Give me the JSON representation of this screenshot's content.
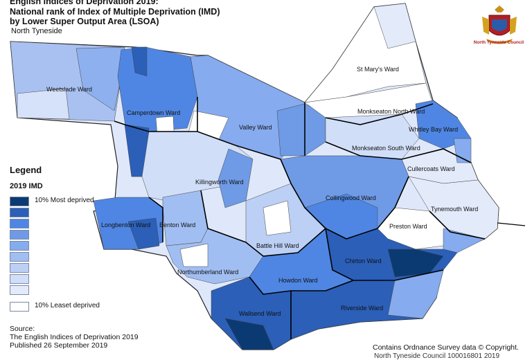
{
  "title": {
    "line1": "English Indices of Deprivation 2019:",
    "line2": "National rank of Index of Multiple Deprivation (IMD)",
    "line3": "by Lower Super Output Area (LSOA)"
  },
  "subtitle": "North Tyneside",
  "legend": {
    "heading": "Legend",
    "subheading": "2019 IMD",
    "classes": [
      {
        "color": "#0b3a73",
        "label": "10% Most deprived"
      },
      {
        "color": "#2b5fb8",
        "label": ""
      },
      {
        "color": "#4f86e3",
        "label": ""
      },
      {
        "color": "#6f9ae6",
        "label": ""
      },
      {
        "color": "#86abee",
        "label": ""
      },
      {
        "color": "#a1bef2",
        "label": ""
      },
      {
        "color": "#bccff4",
        "label": ""
      },
      {
        "color": "#d1def8",
        "label": ""
      },
      {
        "color": "#e3ebfb",
        "label": ""
      },
      {
        "color": "#ffffff",
        "label": "10% Leaset deprived"
      }
    ]
  },
  "source": {
    "line1": "Source:",
    "line2": "The English Indices of Deprivation 2019",
    "line3": "Published 26 September 2019"
  },
  "copyright": "Contains Ordnance Survey data © Copyright.",
  "copyright_partial": "North Tyneside Council 100016801 2019",
  "logo": {
    "council_name": "North Tyneside Council"
  },
  "map": {
    "wards": [
      {
        "name": "Weetslade Ward"
      },
      {
        "name": "Camperdown Ward"
      },
      {
        "name": "Valley Ward"
      },
      {
        "name": "St Mary's Ward"
      },
      {
        "name": "Monkseaton North Ward"
      },
      {
        "name": "Whitley Bay Ward"
      },
      {
        "name": "Monkseaton South Ward"
      },
      {
        "name": "Cullercoats Ward"
      },
      {
        "name": "Killingworth Ward"
      },
      {
        "name": "Collingwood Ward"
      },
      {
        "name": "Tynemouth Ward"
      },
      {
        "name": "Longbenton Ward"
      },
      {
        "name": "Benton Ward"
      },
      {
        "name": "Preston Ward"
      },
      {
        "name": "Battle Hill Ward"
      },
      {
        "name": "Chirton Ward"
      },
      {
        "name": "Northumberland Ward"
      },
      {
        "name": "Howdon Ward"
      },
      {
        "name": "Riverside Ward"
      },
      {
        "name": "Wallsend Ward"
      }
    ]
  }
}
